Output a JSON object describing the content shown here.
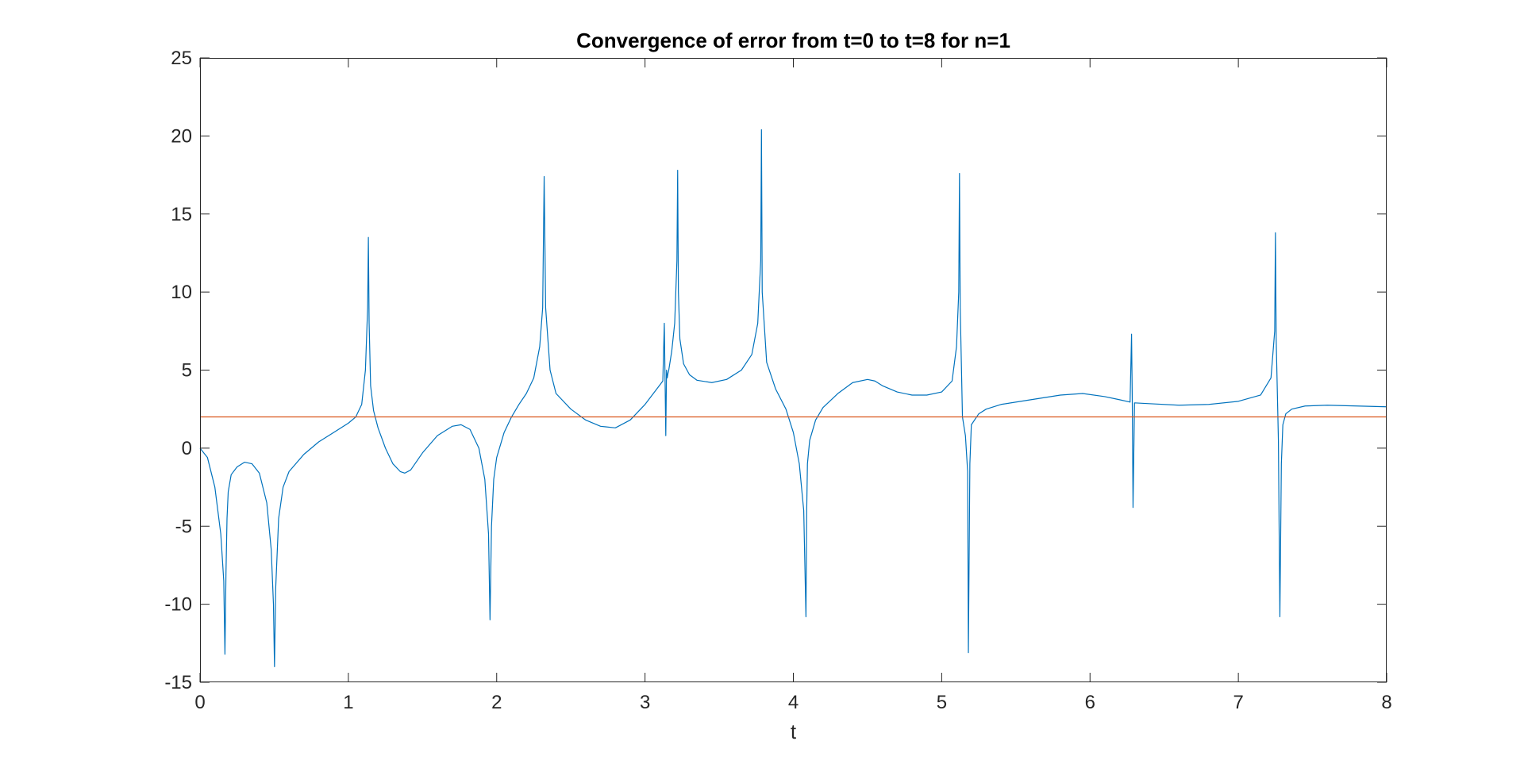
{
  "chart_data": {
    "type": "line",
    "title": "Convergence of error from t=0 to t=8 for n=1",
    "xlabel": "t",
    "ylabel": "",
    "xlim": [
      0,
      8
    ],
    "ylim": [
      -15,
      25
    ],
    "xticks": [
      0,
      1,
      2,
      3,
      4,
      5,
      6,
      7,
      8
    ],
    "yticks": [
      -15,
      -10,
      -5,
      0,
      5,
      10,
      15,
      20,
      25
    ],
    "xtick_labels": [
      "0",
      "1",
      "2",
      "3",
      "4",
      "5",
      "6",
      "7",
      "8"
    ],
    "ytick_labels": [
      "-15",
      "-10",
      "-5",
      "0",
      "5",
      "10",
      "15",
      "20",
      "25"
    ],
    "grid": false,
    "box": true,
    "series": [
      {
        "color": "#0072BD",
        "x": [
          0,
          0.05,
          0.1,
          0.14,
          0.16,
          0.168,
          0.175,
          0.182,
          0.19,
          0.21,
          0.25,
          0.3,
          0.35,
          0.4,
          0.45,
          0.48,
          0.495,
          0.502,
          0.51,
          0.53,
          0.56,
          0.6,
          0.7,
          0.8,
          0.9,
          1.0,
          1.05,
          1.09,
          1.115,
          1.13,
          1.135,
          1.14,
          1.15,
          1.17,
          1.2,
          1.25,
          1.3,
          1.35,
          1.38,
          1.42,
          1.5,
          1.6,
          1.7,
          1.76,
          1.82,
          1.88,
          1.92,
          1.945,
          1.955,
          1.965,
          1.98,
          2.0,
          2.05,
          2.1,
          2.15,
          2.2,
          2.25,
          2.29,
          2.31,
          2.32,
          2.33,
          2.36,
          2.4,
          2.5,
          2.6,
          2.7,
          2.8,
          2.9,
          3.0,
          3.08,
          3.12,
          3.13,
          3.135,
          3.14,
          3.145,
          3.15,
          3.155,
          3.16,
          3.18,
          3.2,
          3.215,
          3.22,
          3.225,
          3.235,
          3.26,
          3.3,
          3.35,
          3.45,
          3.55,
          3.65,
          3.72,
          3.76,
          3.78,
          3.785,
          3.79,
          3.82,
          3.88,
          3.95,
          4.0,
          4.04,
          4.07,
          4.085,
          4.09,
          4.095,
          4.11,
          4.15,
          4.2,
          4.3,
          4.4,
          4.5,
          4.55,
          4.6,
          4.7,
          4.8,
          4.9,
          5.0,
          5.07,
          5.1,
          5.115,
          5.12,
          5.125,
          5.14,
          5.16,
          5.175,
          5.18,
          5.19,
          5.2,
          5.25,
          5.3,
          5.4,
          5.6,
          5.8,
          5.95,
          6.1,
          6.2,
          6.27,
          6.28,
          6.285,
          6.29,
          6.3,
          6.4,
          6.6,
          6.8,
          7.0,
          7.15,
          7.22,
          7.245,
          7.25,
          7.255,
          7.27,
          7.28,
          7.29,
          7.3,
          7.32,
          7.36,
          7.45,
          7.6,
          7.8,
          8.0
        ],
        "y": [
          0,
          -0.6,
          -2.5,
          -5.5,
          -8.5,
          -13.2,
          -8.0,
          -4.5,
          -2.8,
          -1.7,
          -1.2,
          -0.9,
          -1.0,
          -1.6,
          -3.5,
          -6.5,
          -10.0,
          -14.0,
          -9.0,
          -4.5,
          -2.5,
          -1.5,
          -0.4,
          0.4,
          1.0,
          1.6,
          2.0,
          2.8,
          5.0,
          9.0,
          13.5,
          8.0,
          4.0,
          2.4,
          1.3,
          0.0,
          -1.0,
          -1.5,
          -1.6,
          -1.4,
          -0.3,
          0.8,
          1.4,
          1.5,
          1.2,
          0.0,
          -2.0,
          -5.5,
          -11.0,
          -5.0,
          -2.0,
          -0.6,
          1.0,
          2.0,
          2.8,
          3.5,
          4.5,
          6.5,
          9.0,
          17.4,
          9.0,
          5.0,
          3.5,
          2.5,
          1.8,
          1.4,
          1.3,
          1.8,
          2.8,
          3.8,
          4.3,
          8.0,
          4.5,
          0.8,
          5.0,
          4.5,
          4.8,
          5.0,
          6.2,
          8.0,
          12.0,
          17.8,
          10.0,
          7.0,
          5.4,
          4.7,
          4.35,
          4.2,
          4.4,
          5.0,
          6.0,
          8.0,
          12.0,
          20.4,
          10.0,
          5.5,
          3.8,
          2.5,
          1.0,
          -1.0,
          -4.0,
          -10.8,
          -4.0,
          -1.0,
          0.5,
          1.8,
          2.6,
          3.5,
          4.2,
          4.4,
          4.3,
          4.0,
          3.6,
          3.4,
          3.4,
          3.6,
          4.3,
          6.5,
          10.0,
          17.6,
          9.0,
          2.0,
          0.8,
          -1.5,
          -13.1,
          -1.0,
          1.5,
          2.2,
          2.5,
          2.8,
          3.1,
          3.4,
          3.5,
          3.3,
          3.1,
          2.95,
          7.3,
          2.95,
          -3.8,
          2.9,
          2.85,
          2.75,
          2.8,
          3.0,
          3.4,
          4.5,
          7.5,
          13.8,
          7.0,
          0.5,
          -10.8,
          -1.0,
          1.5,
          2.2,
          2.5,
          2.7,
          2.75,
          2.7,
          2.65
        ]
      },
      {
        "color": "#D95319",
        "x": [
          0,
          8
        ],
        "y": [
          2,
          2
        ]
      }
    ]
  }
}
